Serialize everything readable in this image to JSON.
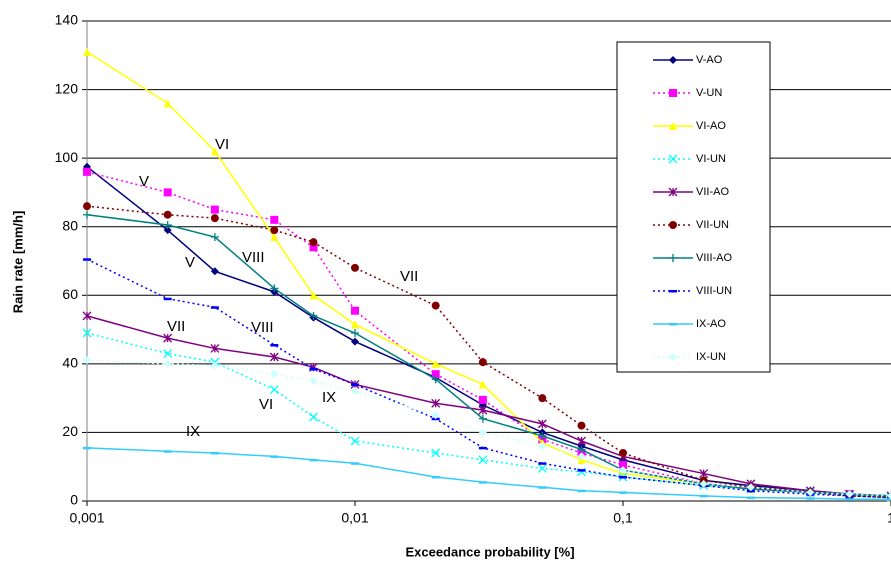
{
  "chart_data": {
    "type": "line",
    "ylabel": "Rain rate [mm/h]",
    "xlabel": "Exceedance probability [%]",
    "xscale": "log",
    "grid": true,
    "legend": "upper right",
    "x": [
      0.001,
      0.002,
      0.003,
      0.005,
      0.007,
      0.01,
      0.02,
      0.03,
      0.05,
      0.07,
      0.1,
      0.2,
      0.3,
      0.5,
      0.7,
      1
    ],
    "xlim": [
      0.001,
      1
    ],
    "xticks": [
      {
        "value": 0.001,
        "label": "0,001"
      },
      {
        "value": 0.01,
        "label": "0,01"
      },
      {
        "value": 0.1,
        "label": "0,1"
      },
      1
    ],
    "ylim": [
      0,
      140
    ],
    "yticks": [
      0,
      20,
      40,
      60,
      80,
      100,
      120,
      140
    ],
    "annotations": [
      "VI",
      "V",
      "VII",
      "VIII",
      "V",
      "VII",
      "VIII",
      "IX",
      "VI",
      "IX"
    ],
    "series": [
      {
        "name": "V-AO",
        "color": "#000080",
        "marker": "diamond",
        "dash": false,
        "values": [
          97.5,
          79,
          67,
          61,
          53.5,
          46.5,
          36,
          28,
          20,
          16,
          12,
          6,
          4.5,
          3,
          2,
          1.5
        ]
      },
      {
        "name": "V-UN",
        "color": "#ff00ff",
        "marker": "square",
        "dash": true,
        "values": [
          96,
          90,
          85,
          82,
          74,
          55.5,
          37,
          29.5,
          18,
          14,
          10.5,
          5,
          4,
          2.5,
          2,
          1
        ]
      },
      {
        "name": "VI-AO",
        "color": "#ffff00",
        "marker": "triangle",
        "dash": false,
        "values": [
          131,
          116,
          102,
          77,
          60,
          51.5,
          40,
          34,
          17,
          12,
          8,
          5,
          3.5,
          2.5,
          2,
          1
        ]
      },
      {
        "name": "VI-UN",
        "color": "#00ffff",
        "marker": "x",
        "dash": true,
        "values": [
          49,
          43,
          40.5,
          32.5,
          24.5,
          17.5,
          14,
          12,
          9.5,
          8.5,
          7,
          4.5,
          3.5,
          2.5,
          1.5,
          1
        ]
      },
      {
        "name": "VII-AO",
        "color": "#800080",
        "marker": "star",
        "dash": false,
        "values": [
          54,
          47.5,
          44.5,
          42,
          39,
          34,
          28.5,
          26.5,
          22.5,
          17.5,
          13,
          8,
          5,
          3,
          2,
          1.5
        ]
      },
      {
        "name": "VII-UN",
        "color": "#800000",
        "marker": "circle",
        "dash": true,
        "values": [
          86,
          83.5,
          82.5,
          79,
          75.5,
          68,
          57,
          40.5,
          30,
          22,
          14,
          6,
          4,
          2.5,
          1.5,
          1
        ]
      },
      {
        "name": "VIII-AO",
        "color": "#008080",
        "marker": "plus",
        "dash": false,
        "values": [
          83.5,
          80.5,
          77,
          62,
          54,
          49,
          35.5,
          24,
          19,
          15,
          9,
          5,
          3.5,
          2.5,
          2,
          1.5
        ]
      },
      {
        "name": "VIII-UN",
        "color": "#0000ff",
        "marker": "bar",
        "dash": true,
        "values": [
          70.5,
          59,
          56.5,
          45.5,
          38.5,
          34,
          24,
          15.5,
          11,
          9,
          7,
          4.5,
          3,
          2,
          1.5,
          1
        ]
      },
      {
        "name": "IX-AO",
        "color": "#33ccff",
        "marker": "bar",
        "dash": false,
        "values": [
          15.5,
          14.5,
          14,
          13,
          12,
          11,
          7,
          5.5,
          4,
          3,
          2.5,
          1.5,
          1,
          0.8,
          0.5,
          0.5
        ]
      },
      {
        "name": "IX-UN",
        "color": "#ccffff",
        "marker": "diamond",
        "dash": true,
        "values": [
          41,
          40,
          39.5,
          37,
          35,
          32,
          25,
          20,
          16,
          13,
          9,
          5,
          4,
          2.5,
          2,
          1.5
        ]
      }
    ]
  }
}
